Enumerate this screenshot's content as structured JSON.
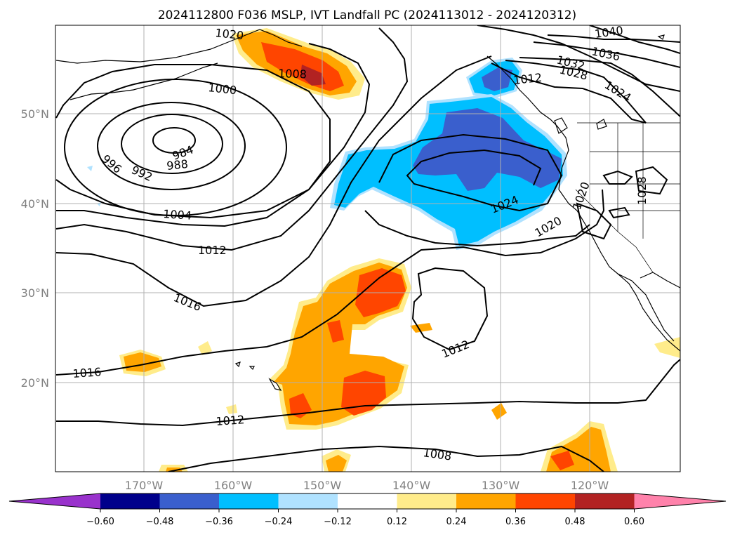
{
  "title": "2024112800 F036 MSLP, IVT Landfall PC (2024113012 - 2024120312)",
  "longitude_labels": [
    "170°W",
    "160°W",
    "150°W",
    "140°W",
    "130°W",
    "120°W"
  ],
  "latitude_labels": [
    "20°N",
    "30°N",
    "40°N",
    "50°N"
  ],
  "colorbar": {
    "ticks": [
      "−0.60",
      "−0.48",
      "−0.36",
      "−0.24",
      "−0.12",
      "0.12",
      "0.24",
      "0.36",
      "0.48",
      "0.60"
    ],
    "colors": [
      "#9932cc",
      "#00008b",
      "#3a5fcd",
      "#00bfff",
      "#b0e2ff",
      "#ffffff",
      "#ffec8b",
      "#ffa500",
      "#ff4500",
      "#b22222",
      "#ff82ab"
    ]
  },
  "contour_labels": [
    "1040",
    "1036",
    "1032",
    "1028",
    "1024",
    "1020",
    "1012",
    "1008",
    "1000",
    "984",
    "988",
    "992",
    "996",
    "1004",
    "1012",
    "1016",
    "1016",
    "1012",
    "1012",
    "1008",
    "1024",
    "1020",
    "1028",
    "1020"
  ]
}
